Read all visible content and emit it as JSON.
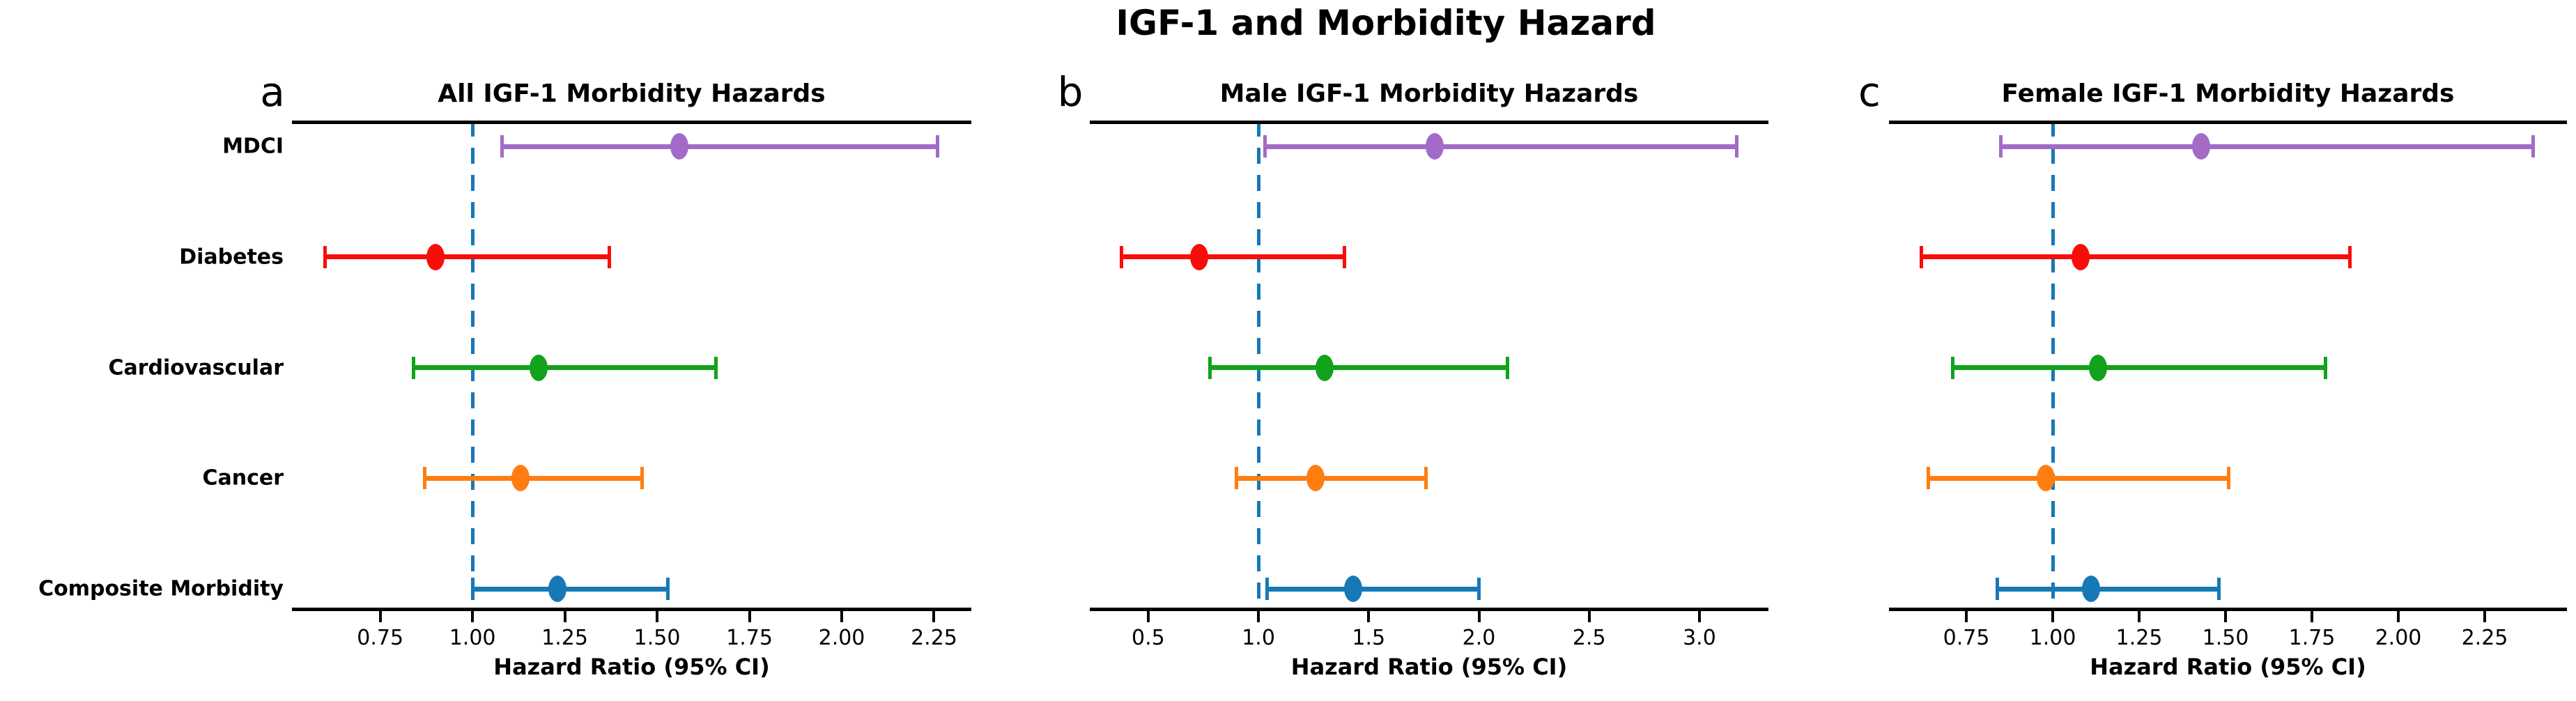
{
  "figure": {
    "title": "IGF-1 and Morbidity Hazard",
    "background_color": "#ffffff",
    "text_color": "#000000",
    "reference_line": {
      "value": 1.0,
      "style": "dashed",
      "color": "#1778b6"
    }
  },
  "categories": [
    "MDCI",
    "Diabetes",
    "Cardiovascular",
    "Cancer",
    "Composite Morbidity"
  ],
  "series_colors": {
    "MDCI": "#a26bc8",
    "Diabetes": "#f90d0b",
    "Cardiovascular": "#12a21b",
    "Cancer": "#ff7d11",
    "Composite Morbidity": "#1778b6"
  },
  "chart_data": [
    {
      "type": "scatter",
      "subtype": "forest-plot-errorbar",
      "panel_label": "a",
      "title": "All IGF-1 Morbidity Hazards",
      "xlabel": "Hazard Ratio (95% CI)",
      "xlim": [
        0.511,
        2.351
      ],
      "xtick_values": [
        0.75,
        1.0,
        1.25,
        1.5,
        1.75,
        2.0,
        2.25
      ],
      "xtick_labels": [
        "0.75",
        "1.00",
        "1.25",
        "1.50",
        "1.75",
        "2.00",
        "2.25"
      ],
      "ref_value": 1.0,
      "show_row_labels": true,
      "grid": false,
      "rows": [
        {
          "category": "MDCI",
          "hr": 1.56,
          "ci_low": 1.08,
          "ci_high": 2.26,
          "color": "#a26bc8"
        },
        {
          "category": "Diabetes",
          "hr": 0.9,
          "ci_low": 0.6,
          "ci_high": 1.37,
          "color": "#f90d0b"
        },
        {
          "category": "Cardiovascular",
          "hr": 1.18,
          "ci_low": 0.84,
          "ci_high": 1.66,
          "color": "#12a21b"
        },
        {
          "category": "Cancer",
          "hr": 1.13,
          "ci_low": 0.87,
          "ci_high": 1.46,
          "color": "#ff7d11"
        },
        {
          "category": "Composite Morbidity",
          "hr": 1.23,
          "ci_low": 1.0,
          "ci_high": 1.53,
          "color": "#1778b6"
        }
      ]
    },
    {
      "type": "scatter",
      "subtype": "forest-plot-errorbar",
      "panel_label": "b",
      "title": "Male IGF-1 Morbidity Hazards",
      "xlabel": "Hazard Ratio (95% CI)",
      "xlim": [
        0.235,
        3.313
      ],
      "xtick_values": [
        0.5,
        1.0,
        1.5,
        2.0,
        2.5,
        3.0
      ],
      "xtick_labels": [
        "0.5",
        "1.0",
        "1.5",
        "2.0",
        "2.5",
        "3.0"
      ],
      "ref_value": 1.0,
      "show_row_labels": false,
      "grid": false,
      "rows": [
        {
          "category": "MDCI",
          "hr": 1.8,
          "ci_low": 1.03,
          "ci_high": 3.17,
          "color": "#a26bc8"
        },
        {
          "category": "Diabetes",
          "hr": 0.73,
          "ci_low": 0.38,
          "ci_high": 1.39,
          "color": "#f90d0b"
        },
        {
          "category": "Cardiovascular",
          "hr": 1.3,
          "ci_low": 0.78,
          "ci_high": 2.13,
          "color": "#12a21b"
        },
        {
          "category": "Cancer",
          "hr": 1.26,
          "ci_low": 0.9,
          "ci_high": 1.76,
          "color": "#ff7d11"
        },
        {
          "category": "Composite Morbidity",
          "hr": 1.43,
          "ci_low": 1.04,
          "ci_high": 2.0,
          "color": "#1778b6"
        }
      ]
    },
    {
      "type": "scatter",
      "subtype": "forest-plot-errorbar",
      "panel_label": "c",
      "title": "Female IGF-1 Morbidity Hazards",
      "xlabel": "Hazard Ratio (95% CI)",
      "xlim": [
        0.526,
        2.488
      ],
      "xtick_values": [
        0.75,
        1.0,
        1.25,
        1.5,
        1.75,
        2.0,
        2.25
      ],
      "xtick_labels": [
        "0.75",
        "1.00",
        "1.25",
        "1.50",
        "1.75",
        "2.00",
        "2.25"
      ],
      "ref_value": 1.0,
      "show_row_labels": false,
      "grid": false,
      "rows": [
        {
          "category": "MDCI",
          "hr": 1.43,
          "ci_low": 0.85,
          "ci_high": 2.39,
          "color": "#a26bc8"
        },
        {
          "category": "Diabetes",
          "hr": 1.08,
          "ci_low": 0.62,
          "ci_high": 1.86,
          "color": "#f90d0b"
        },
        {
          "category": "Cardiovascular",
          "hr": 1.13,
          "ci_low": 0.71,
          "ci_high": 1.79,
          "color": "#12a21b"
        },
        {
          "category": "Cancer",
          "hr": 0.98,
          "ci_low": 0.64,
          "ci_high": 1.51,
          "color": "#ff7d11"
        },
        {
          "category": "Composite Morbidity",
          "hr": 1.11,
          "ci_low": 0.84,
          "ci_high": 1.48,
          "color": "#1778b6"
        }
      ]
    }
  ]
}
